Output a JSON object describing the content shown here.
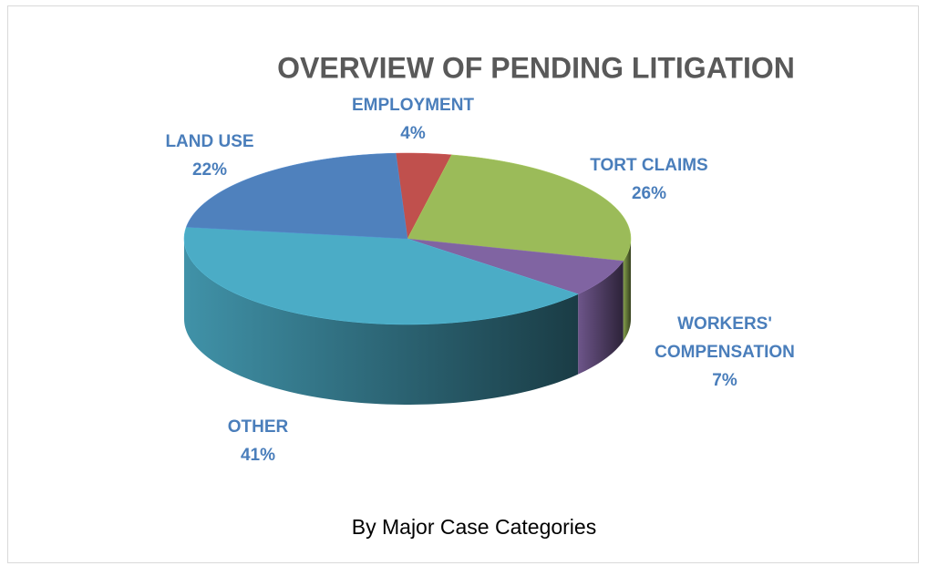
{
  "chart_data": {
    "type": "pie",
    "title": "OVERVIEW OF PENDING LITIGATION",
    "subtitle": "By Major Case Categories",
    "categories": [
      "EMPLOYMENT",
      "TORT CLAIMS",
      "WORKERS' COMPENSATION",
      "OTHER",
      "LAND USE"
    ],
    "values": [
      4,
      26,
      7,
      41,
      22
    ],
    "value_labels": [
      "4%",
      "26%",
      "7%",
      "41%",
      "22%"
    ],
    "colors": [
      "#c0504d",
      "#9bbb59",
      "#8064a2",
      "#4bacc6",
      "#4f81bd"
    ]
  }
}
